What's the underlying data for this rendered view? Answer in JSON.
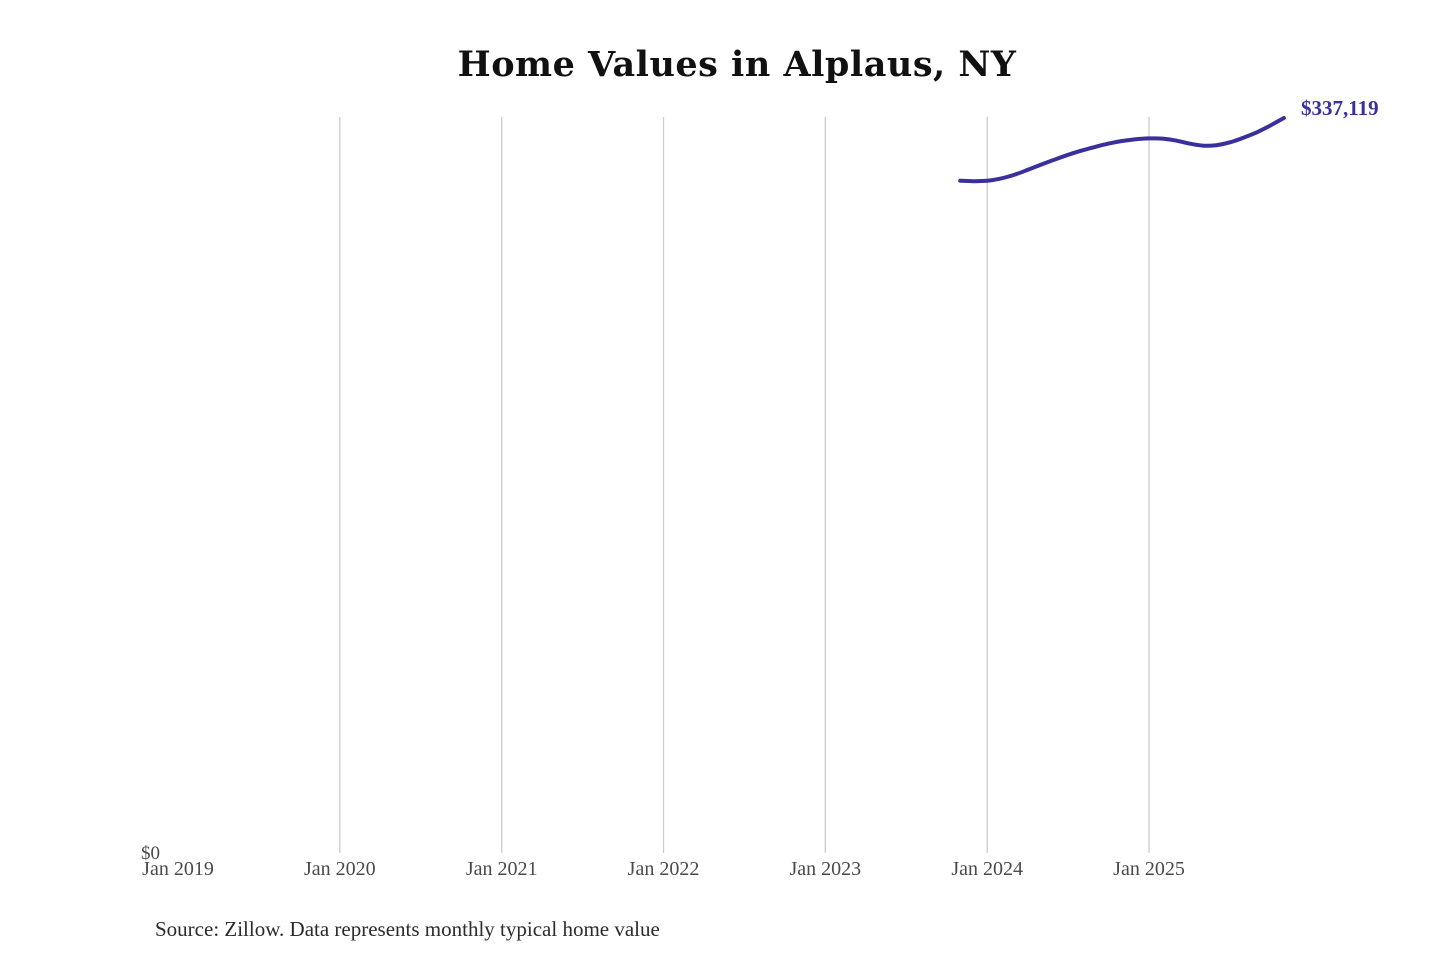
{
  "title": "Home Values in Alplaus, NY",
  "source_note": "Source: Zillow. Data represents monthly typical home value",
  "colors": {
    "line": "#39319b",
    "grid": "#cccccc",
    "tick_label": "#4a4a4a",
    "title": "#111111",
    "source": "#2b2b2b",
    "background": "#ffffff"
  },
  "chart_data": {
    "type": "line",
    "title": "Home Values in Alplaus, NY",
    "legend": "none",
    "grid": "vertical-only",
    "x_ticks": [
      {
        "label": "Jan 2019",
        "month_index": 0,
        "gridline": false
      },
      {
        "label": "Jan 2020",
        "month_index": 12,
        "gridline": true
      },
      {
        "label": "Jan 2021",
        "month_index": 24,
        "gridline": true
      },
      {
        "label": "Jan 2022",
        "month_index": 36,
        "gridline": true
      },
      {
        "label": "Jan 2023",
        "month_index": 48,
        "gridline": true
      },
      {
        "label": "Jan 2024",
        "month_index": 60,
        "gridline": true
      },
      {
        "label": "Jan 2025",
        "month_index": 72,
        "gridline": true
      }
    ],
    "y_axis": {
      "min": 0,
      "zero_label": "$0"
    },
    "series": [
      {
        "name": "Monthly typical home value",
        "color": "#39319b",
        "start_month_index": 58,
        "end_label": "$337,119",
        "end_value": 337119,
        "points": [
          {
            "month": "Nov 2023",
            "value": 308400
          },
          {
            "month": "Dec 2023",
            "value": 308200
          },
          {
            "month": "Jan 2024",
            "value": 308400
          },
          {
            "month": "Feb 2024",
            "value": 309400
          },
          {
            "month": "Mar 2024",
            "value": 311100
          },
          {
            "month": "Apr 2024",
            "value": 313400
          },
          {
            "month": "May 2024",
            "value": 315800
          },
          {
            "month": "Jun 2024",
            "value": 318100
          },
          {
            "month": "Jul 2024",
            "value": 320300
          },
          {
            "month": "Aug 2024",
            "value": 322200
          },
          {
            "month": "Sep 2024",
            "value": 323900
          },
          {
            "month": "Oct 2024",
            "value": 325400
          },
          {
            "month": "Nov 2024",
            "value": 326600
          },
          {
            "month": "Dec 2024",
            "value": 327400
          },
          {
            "month": "Jan 2025",
            "value": 327800
          },
          {
            "month": "Feb 2025",
            "value": 327700
          },
          {
            "month": "Mar 2025",
            "value": 326800
          },
          {
            "month": "Apr 2025",
            "value": 325400
          },
          {
            "month": "May 2025",
            "value": 324500
          },
          {
            "month": "Jun 2025",
            "value": 324700
          },
          {
            "month": "Jul 2025",
            "value": 326000
          },
          {
            "month": "Aug 2025",
            "value": 328100
          },
          {
            "month": "Sep 2025",
            "value": 330600
          },
          {
            "month": "Oct 2025",
            "value": 333700
          },
          {
            "month": "Nov 2025",
            "value": 337119
          }
        ]
      }
    ]
  }
}
